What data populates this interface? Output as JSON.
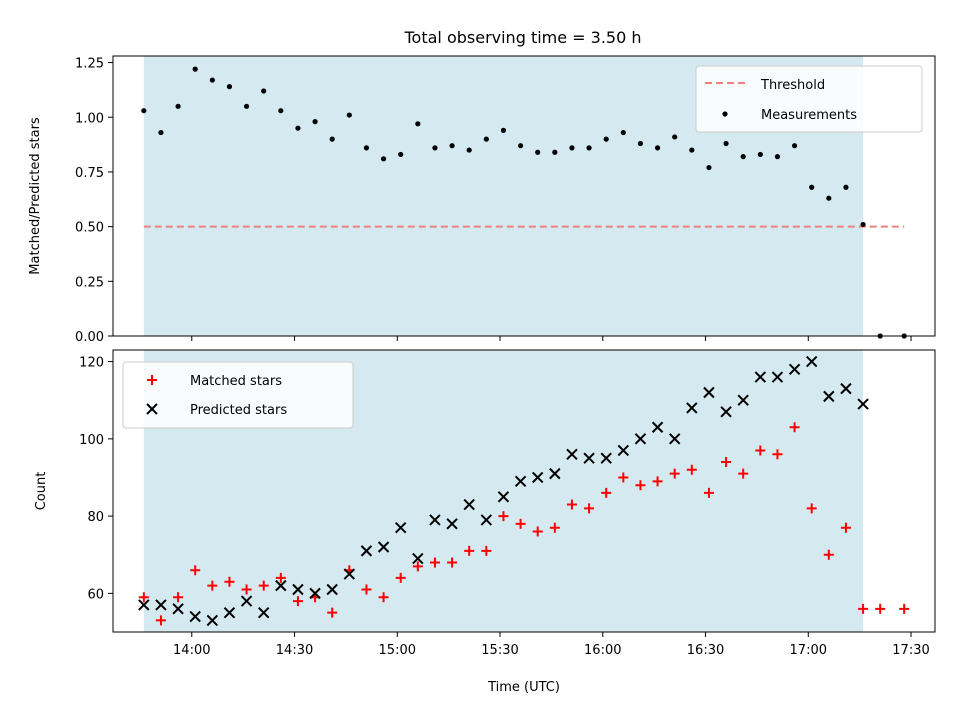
{
  "title": "Total observing time = 3.50 h",
  "colors": {
    "shade": "#d4eaf0",
    "threshold": "#f07f7f",
    "measurements": "#000000",
    "matched": "#ff0000",
    "predicted": "#000000"
  },
  "chart_data": [
    {
      "type": "scatter",
      "name": "ratio-panel",
      "xlabel": "",
      "ylabel": "Matched/Predicted stars",
      "xlim": [
        "13:37",
        "17:37"
      ],
      "ylim": [
        0,
        1.28
      ],
      "yticks": [
        0.0,
        0.25,
        0.5,
        0.75,
        1.0,
        1.25
      ],
      "ytick_labels": [
        "0.00",
        "0.25",
        "0.50",
        "0.75",
        "1.00",
        "1.25"
      ],
      "shaded_span": [
        "13:46",
        "17:16"
      ],
      "legend": {
        "placement": "upper right",
        "entries": [
          "Threshold",
          "Measurements"
        ]
      },
      "threshold": {
        "name": "Threshold",
        "y": 0.5,
        "x_range": [
          "13:46",
          "17:28"
        ],
        "style": "dashed"
      },
      "series": [
        {
          "name": "Measurements",
          "marker": "dot",
          "x": [
            "13:46",
            "13:51",
            "13:56",
            "14:01",
            "14:06",
            "14:11",
            "14:16",
            "14:21",
            "14:26",
            "14:31",
            "14:36",
            "14:41",
            "14:46",
            "14:51",
            "14:56",
            "15:01",
            "15:06",
            "15:11",
            "15:16",
            "15:21",
            "15:26",
            "15:31",
            "15:36",
            "15:41",
            "15:46",
            "15:51",
            "15:56",
            "16:01",
            "16:06",
            "16:11",
            "16:16",
            "16:21",
            "16:26",
            "16:31",
            "16:36",
            "16:41",
            "16:46",
            "16:51",
            "16:56",
            "17:01",
            "17:06",
            "17:11",
            "17:16",
            "17:21",
            "17:28"
          ],
          "y": [
            1.03,
            0.93,
            1.05,
            1.22,
            1.17,
            1.14,
            1.05,
            1.12,
            1.03,
            0.95,
            0.98,
            0.9,
            1.01,
            0.86,
            0.81,
            0.83,
            0.97,
            0.86,
            0.87,
            0.85,
            0.9,
            0.94,
            0.87,
            0.84,
            0.84,
            0.86,
            0.86,
            0.9,
            0.93,
            0.88,
            0.86,
            0.91,
            0.85,
            0.77,
            0.88,
            0.82,
            0.83,
            0.82,
            0.87,
            0.68,
            0.63,
            0.68,
            0.51,
            0.0,
            0.0
          ]
        }
      ]
    },
    {
      "type": "scatter",
      "name": "count-panel",
      "xlabel": "Time (UTC)",
      "ylabel": "Count",
      "xlim": [
        "13:37",
        "17:37"
      ],
      "ylim": [
        50,
        123
      ],
      "yticks": [
        60,
        80,
        100,
        120
      ],
      "ytick_labels": [
        "60",
        "80",
        "100",
        "120"
      ],
      "xticks": [
        "14:00",
        "14:30",
        "15:00",
        "15:30",
        "16:00",
        "16:30",
        "17:00",
        "17:30"
      ],
      "shaded_span": [
        "13:46",
        "17:16"
      ],
      "legend": {
        "placement": "upper left",
        "entries": [
          "Matched stars",
          "Predicted stars"
        ]
      },
      "series": [
        {
          "name": "Matched stars",
          "marker": "plus",
          "x": [
            "13:46",
            "13:51",
            "13:56",
            "14:01",
            "14:06",
            "14:11",
            "14:16",
            "14:21",
            "14:26",
            "14:31",
            "14:36",
            "14:41",
            "14:46",
            "14:51",
            "14:56",
            "15:01",
            "15:06",
            "15:11",
            "15:16",
            "15:21",
            "15:26",
            "15:31",
            "15:36",
            "15:41",
            "15:46",
            "15:51",
            "15:56",
            "16:01",
            "16:06",
            "16:11",
            "16:16",
            "16:21",
            "16:26",
            "16:31",
            "16:36",
            "16:41",
            "16:46",
            "16:51",
            "16:56",
            "17:01",
            "17:06",
            "17:11",
            "17:16",
            "17:21",
            "17:28"
          ],
          "y": [
            59,
            53,
            59,
            66,
            62,
            63,
            61,
            62,
            64,
            58,
            59,
            55,
            66,
            61,
            59,
            64,
            67,
            68,
            68,
            71,
            71,
            80,
            78,
            76,
            77,
            83,
            82,
            86,
            90,
            88,
            89,
            91,
            92,
            86,
            94,
            91,
            97,
            96,
            103,
            82,
            70,
            77,
            56,
            56,
            56
          ]
        },
        {
          "name": "Predicted stars",
          "marker": "x",
          "x": [
            "13:46",
            "13:51",
            "13:56",
            "14:01",
            "14:06",
            "14:11",
            "14:16",
            "14:21",
            "14:26",
            "14:31",
            "14:36",
            "14:41",
            "14:46",
            "14:51",
            "14:56",
            "15:01",
            "15:06",
            "15:11",
            "15:16",
            "15:21",
            "15:26",
            "15:31",
            "15:36",
            "15:41",
            "15:46",
            "15:51",
            "15:56",
            "16:01",
            "16:06",
            "16:11",
            "16:16",
            "16:21",
            "16:26",
            "16:31",
            "16:36",
            "16:41",
            "16:46",
            "16:51",
            "16:56",
            "17:01",
            "17:06",
            "17:11",
            "17:16"
          ],
          "y": [
            57,
            57,
            56,
            54,
            53,
            55,
            58,
            55,
            62,
            61,
            60,
            61,
            65,
            71,
            72,
            77,
            69,
            79,
            78,
            83,
            79,
            85,
            89,
            90,
            91,
            96,
            95,
            95,
            97,
            100,
            103,
            100,
            108,
            112,
            107,
            110,
            116,
            116,
            118,
            120,
            111,
            113,
            109
          ]
        }
      ]
    }
  ]
}
